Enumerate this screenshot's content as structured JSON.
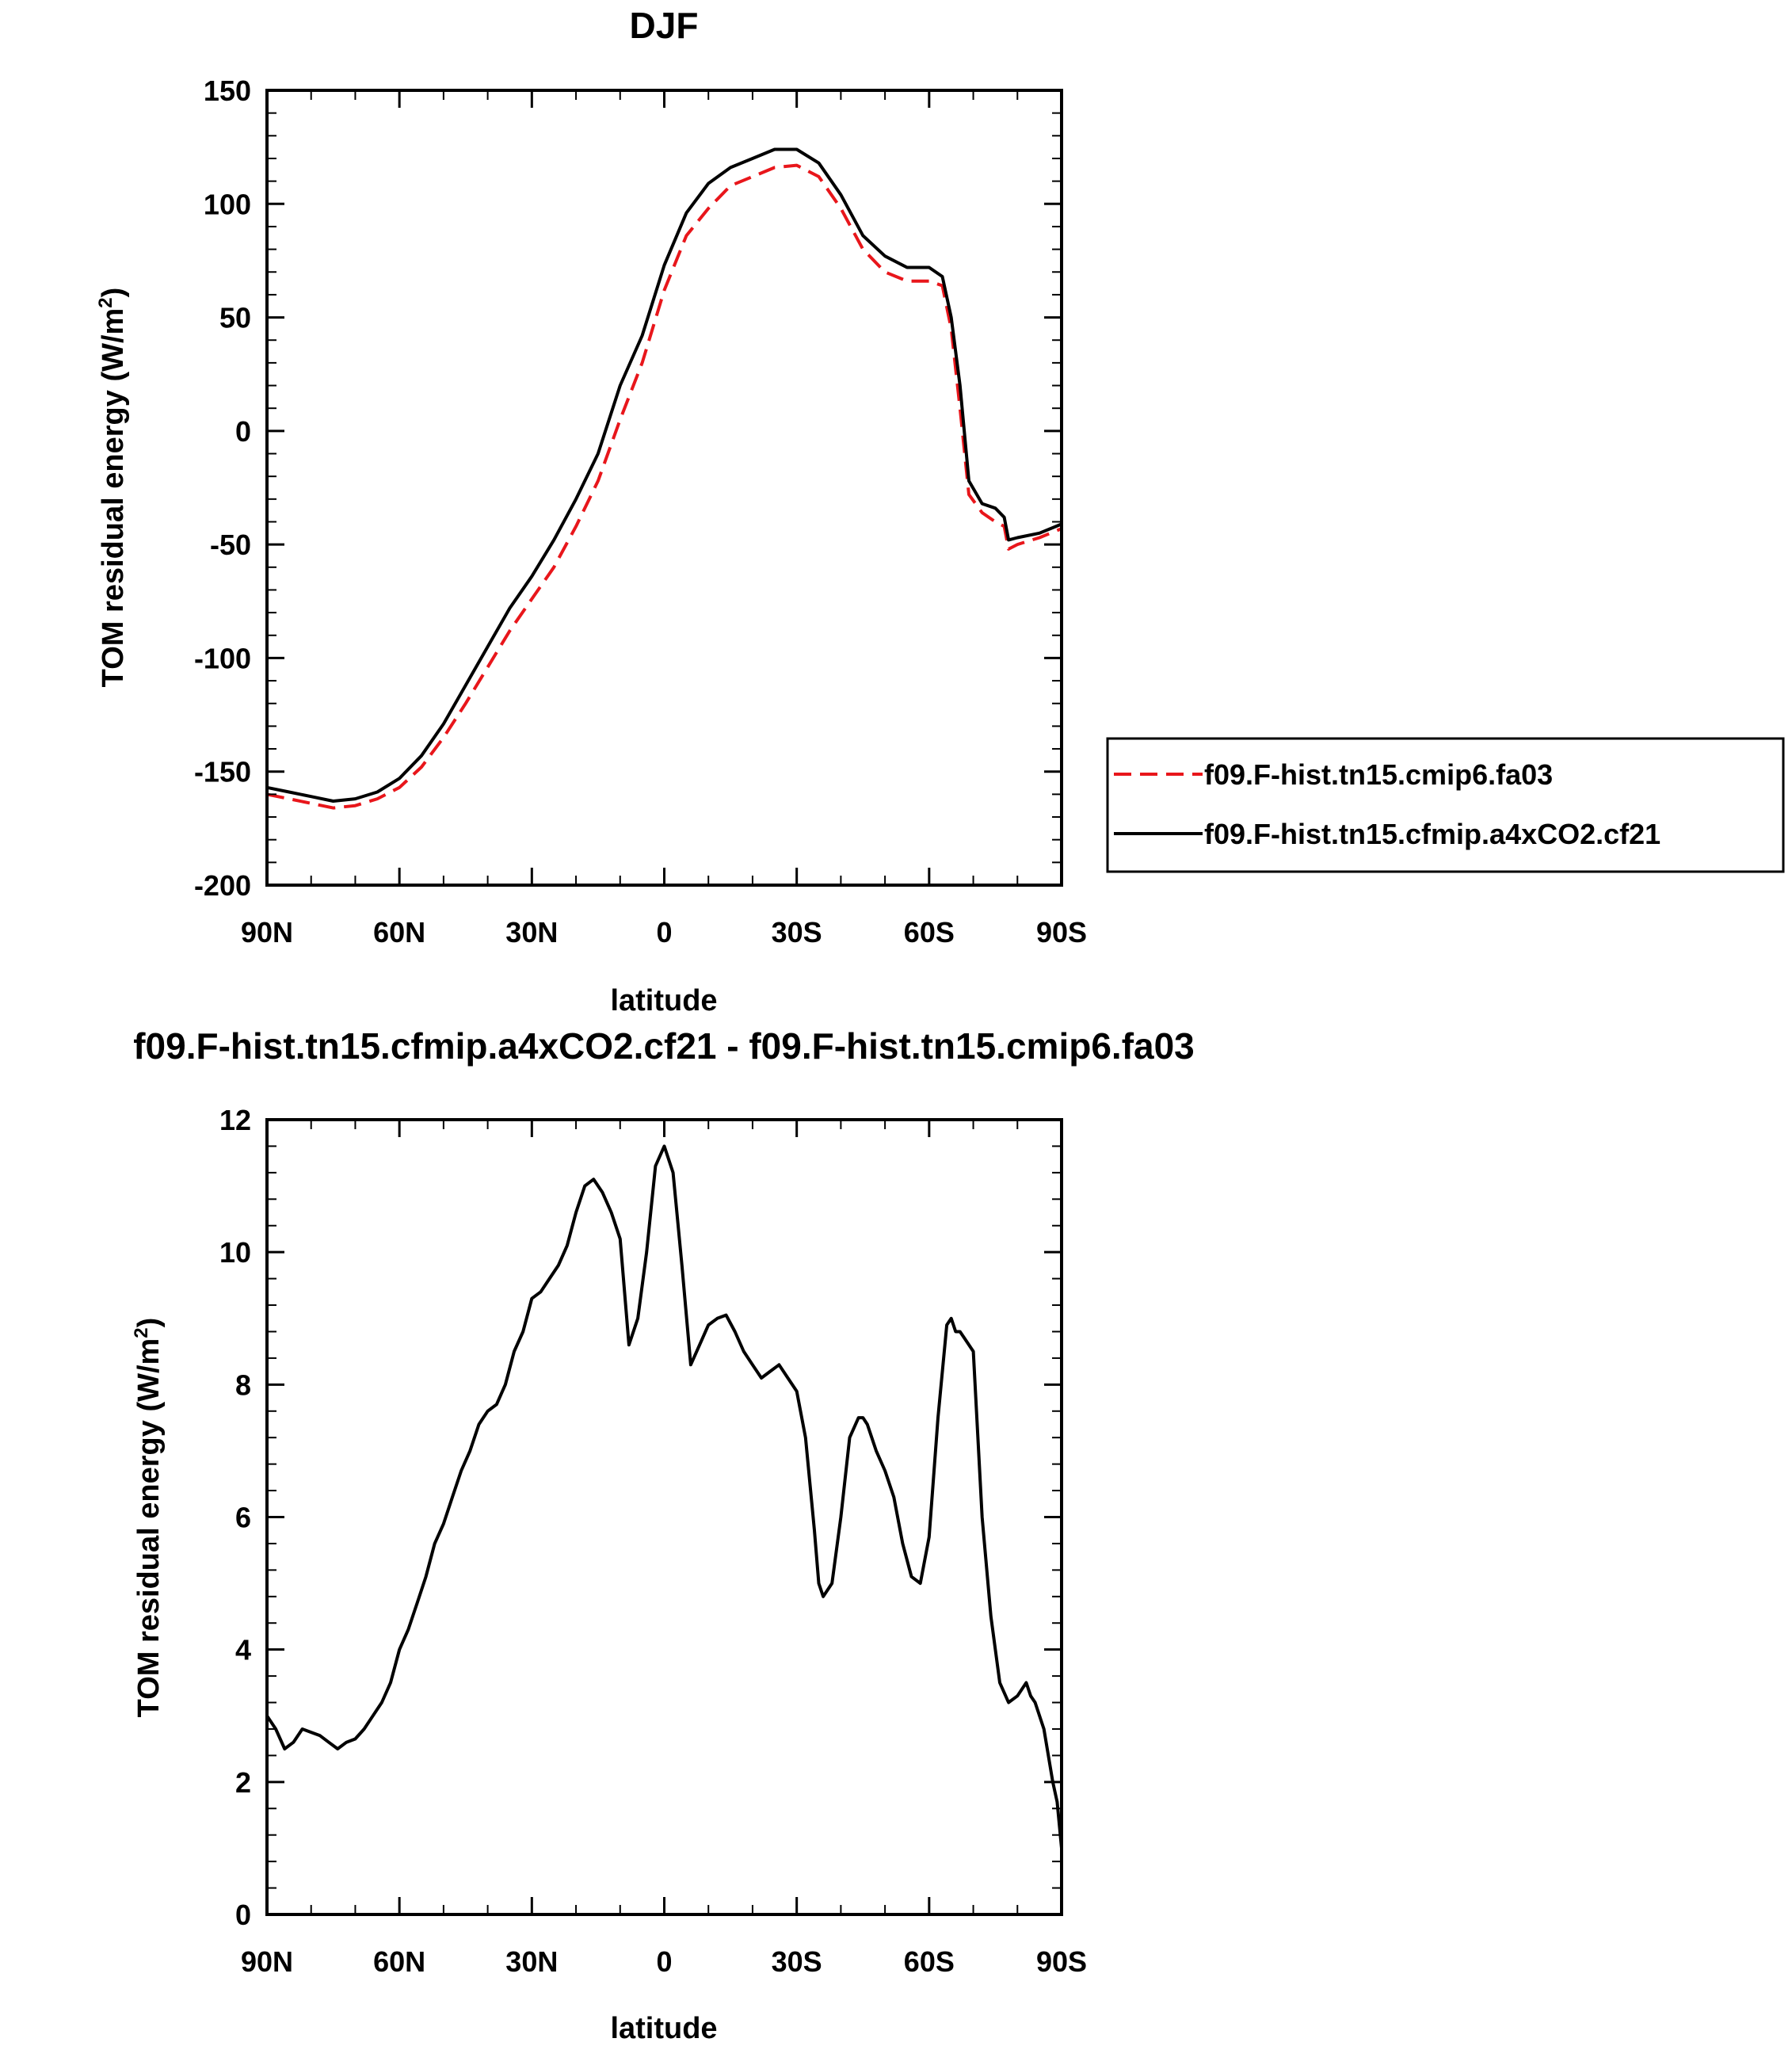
{
  "chart_data": [
    {
      "type": "line",
      "title": "DJF",
      "xlabel": "latitude",
      "ylabel": "TOM residual energy (W/m",
      "ylabel_sup": "2",
      "ylabel_end": ")",
      "xlim": [
        90,
        -90
      ],
      "ylim": [
        -200,
        150
      ],
      "xticks": [
        90,
        60,
        30,
        0,
        -30,
        -60,
        -90
      ],
      "xtick_labels": [
        "90N",
        "60N",
        "30N",
        "0",
        "30S",
        "60S",
        "90S"
      ],
      "yticks": [
        -200,
        -150,
        -100,
        -50,
        0,
        50,
        100,
        150
      ],
      "ytick_labels": [
        "-200",
        "-150",
        "-100",
        "-50",
        "0",
        "50",
        "100",
        "150"
      ],
      "grid": false,
      "legend_position": "right",
      "series": [
        {
          "name": "f09.F-hist.tn15.cmip6.fa03",
          "color": "#e8161b",
          "dash": "dashed",
          "x": [
            90,
            85,
            80,
            75,
            70,
            65,
            60,
            55,
            50,
            45,
            40,
            35,
            30,
            25,
            20,
            15,
            10,
            5,
            0,
            -5,
            -10,
            -15,
            -20,
            -25,
            -30,
            -35,
            -40,
            -45,
            -50,
            -55,
            -60,
            -63,
            -65,
            -67,
            -69,
            -72,
            -75,
            -77,
            -78,
            -80,
            -85,
            -90
          ],
          "y": [
            -160,
            -162,
            -164,
            -166,
            -165,
            -162,
            -157,
            -148,
            -135,
            -120,
            -104,
            -88,
            -74,
            -60,
            -42,
            -22,
            5,
            30,
            62,
            86,
            98,
            108,
            112,
            116,
            117,
            112,
            98,
            80,
            70,
            66,
            66,
            64,
            45,
            10,
            -28,
            -36,
            -40,
            -42,
            -52,
            -50,
            -47,
            -43
          ]
        },
        {
          "name": "f09.F-hist.tn15.cfmip.a4xCO2.cf21",
          "color": "#000000",
          "dash": "solid",
          "x": [
            90,
            85,
            80,
            75,
            70,
            65,
            60,
            55,
            50,
            45,
            40,
            35,
            30,
            25,
            20,
            15,
            10,
            5,
            0,
            -5,
            -10,
            -15,
            -20,
            -25,
            -30,
            -35,
            -40,
            -45,
            -50,
            -55,
            -60,
            -63,
            -65,
            -67,
            -69,
            -72,
            -75,
            -77,
            -78,
            -80,
            -85,
            -90
          ],
          "y": [
            -157,
            -159,
            -161,
            -163,
            -162,
            -159,
            -153,
            -143,
            -129,
            -112,
            -95,
            -78,
            -64,
            -48,
            -30,
            -10,
            20,
            42,
            73,
            96,
            109,
            116,
            120,
            124,
            124,
            118,
            104,
            86,
            77,
            72,
            72,
            68,
            50,
            20,
            -22,
            -32,
            -34,
            -38,
            -48,
            -47,
            -45,
            -41
          ]
        }
      ]
    },
    {
      "type": "line",
      "title": "f09.F-hist.tn15.cfmip.a4xCO2.cf21 - f09.F-hist.tn15.cmip6.fa03",
      "xlabel": "latitude",
      "ylabel": "TOM residual energy (W/m",
      "ylabel_sup": "2",
      "ylabel_end": ")",
      "xlim": [
        90,
        -90
      ],
      "ylim": [
        0,
        12
      ],
      "xticks": [
        90,
        60,
        30,
        0,
        -30,
        -60,
        -90
      ],
      "xtick_labels": [
        "90N",
        "60N",
        "30N",
        "0",
        "30S",
        "60S",
        "90S"
      ],
      "yticks": [
        0,
        2,
        4,
        6,
        8,
        10,
        12
      ],
      "ytick_labels": [
        "0",
        "2",
        "4",
        "6",
        "8",
        "10",
        "12"
      ],
      "grid": false,
      "series": [
        {
          "color": "#000000",
          "dash": "solid",
          "x": [
            90,
            88,
            86,
            84,
            82,
            80,
            78,
            76,
            74,
            72,
            70,
            68,
            66,
            64,
            62,
            60,
            58,
            56,
            54,
            52,
            50,
            48,
            46,
            44,
            42,
            40,
            38,
            36,
            34,
            32,
            30,
            28,
            26,
            24,
            22,
            20,
            18,
            16,
            14,
            12,
            10,
            8,
            6,
            4,
            2,
            0,
            -2,
            -4,
            -6,
            -8,
            -10,
            -12,
            -14,
            -16,
            -18,
            -20,
            -22,
            -24,
            -26,
            -28,
            -30,
            -32,
            -34,
            -35,
            -36,
            -38,
            -40,
            -42,
            -44,
            -45,
            -46,
            -48,
            -50,
            -52,
            -54,
            -56,
            -58,
            -60,
            -62,
            -64,
            -65,
            -66,
            -67,
            -68,
            -70,
            -72,
            -74,
            -76,
            -78,
            -80,
            -82,
            -83,
            -84,
            -86,
            -88,
            -89,
            -90
          ],
          "y": [
            3.0,
            2.8,
            2.5,
            2.6,
            2.8,
            2.75,
            2.7,
            2.6,
            2.5,
            2.6,
            2.65,
            2.8,
            3.0,
            3.2,
            3.5,
            4.0,
            4.3,
            4.7,
            5.1,
            5.6,
            5.9,
            6.3,
            6.7,
            7.0,
            7.4,
            7.6,
            7.7,
            8.0,
            8.5,
            8.8,
            9.3,
            9.4,
            9.6,
            9.8,
            10.1,
            10.6,
            11.0,
            11.1,
            10.9,
            10.6,
            10.2,
            8.6,
            9.0,
            10.0,
            11.3,
            11.6,
            11.2,
            9.8,
            8.3,
            8.6,
            8.9,
            9.0,
            9.05,
            8.8,
            8.5,
            8.3,
            8.1,
            8.2,
            8.3,
            8.1,
            7.9,
            7.2,
            5.8,
            5.0,
            4.8,
            5.0,
            6.0,
            7.2,
            7.5,
            7.5,
            7.4,
            7.0,
            6.7,
            6.3,
            5.6,
            5.1,
            5.0,
            5.7,
            7.5,
            8.9,
            9.0,
            8.8,
            8.8,
            8.7,
            8.5,
            6.0,
            4.5,
            3.5,
            3.2,
            3.3,
            3.5,
            3.3,
            3.2,
            2.8,
            2.0,
            1.7,
            1.0
          ]
        }
      ]
    }
  ]
}
